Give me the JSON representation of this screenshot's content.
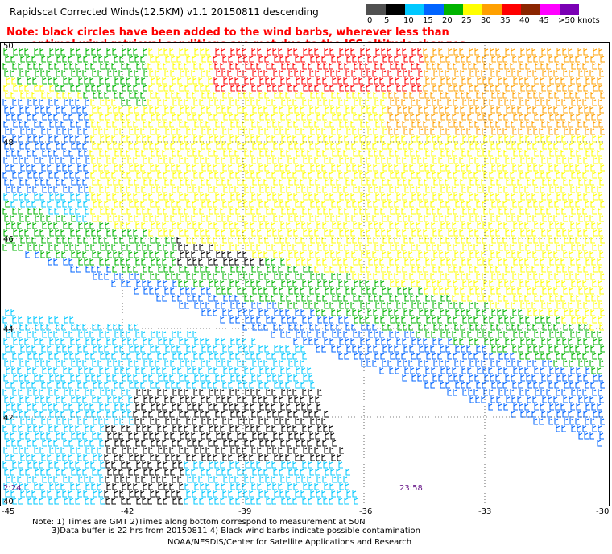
{
  "header": {
    "title": "Rapidscat Corrected Winds(12.5KM) v1.1 20150811 descending",
    "note_line1": "Note: black circles have been added to the wind barbs, wherever less than",
    "note_line2": "optimal wind retrieval conditions are met due to the ISS altitude changes."
  },
  "color_scale": {
    "labels": [
      "0",
      "5",
      "10",
      "15",
      "20",
      "25",
      "30",
      "35",
      "40",
      "45",
      ">50 knots"
    ],
    "colors": [
      "#505050",
      "#000000",
      "#00c8ff",
      "#0064ff",
      "#00b400",
      "#ffff00",
      "#ffa000",
      "#ff0000",
      "#8b2500",
      "#ff00ff",
      "#7a00b4"
    ]
  },
  "map": {
    "lat_labels": [
      "50",
      "48",
      "46",
      "44",
      "42",
      "40"
    ],
    "lon_labels": [
      "-45",
      "-42",
      "-39",
      "-36",
      "-33",
      "-30"
    ],
    "time_labels": [
      "2:24",
      "23:58"
    ]
  },
  "footer": {
    "line1": "Note: 1) Times are GMT 2)Times along bottom correspond to measurement at 50N",
    "line2": "3)Data buffer is 22 hrs from 20150811 4) Black wind barbs indicate possible contamination",
    "credit": "NOAA/NESDIS/Center for Satellite Applications and Research"
  }
}
